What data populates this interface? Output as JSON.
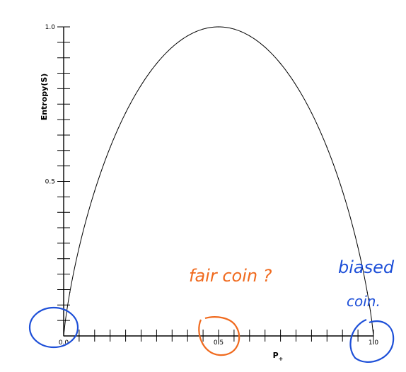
{
  "chart_data": {
    "type": "line",
    "xlabel": "P",
    "xlabel_subscript": "+",
    "ylabel": "Entropy(S)",
    "xlim": [
      0,
      1
    ],
    "ylim": [
      0,
      1
    ],
    "x_ticks": [
      {
        "value": 0.0,
        "label": "0.0"
      },
      {
        "value": 0.5,
        "label": "0.5"
      },
      {
        "value": 1.0,
        "label": "1.0"
      }
    ],
    "y_ticks": [
      {
        "value": 0.5,
        "label": "0.5"
      },
      {
        "value": 1.0,
        "label": "1.0"
      }
    ],
    "minor_ticks_per_unit": 20,
    "grid": false,
    "series": [
      {
        "x": [
          0.0,
          0.01,
          0.02,
          0.05,
          0.1,
          0.15,
          0.2,
          0.25,
          0.3,
          0.35,
          0.4,
          0.45,
          0.5,
          0.55,
          0.6,
          0.65,
          0.7,
          0.75,
          0.8,
          0.85,
          0.9,
          0.95,
          0.98,
          0.99,
          1.0
        ],
        "y": [
          0.0,
          0.081,
          0.141,
          0.286,
          0.469,
          0.61,
          0.722,
          0.811,
          0.881,
          0.934,
          0.971,
          0.993,
          1.0,
          0.993,
          0.971,
          0.934,
          0.881,
          0.811,
          0.722,
          0.61,
          0.469,
          0.286,
          0.141,
          0.081,
          0.0
        ]
      }
    ],
    "colors": {
      "curve": "#000000",
      "axis": "#000000",
      "annotation_orange": "#f06a1e",
      "annotation_blue": "#1d4fd8"
    }
  },
  "annotations": {
    "fair": "fair coin ?",
    "biased_line1": "biased",
    "biased_line2": "coin."
  }
}
